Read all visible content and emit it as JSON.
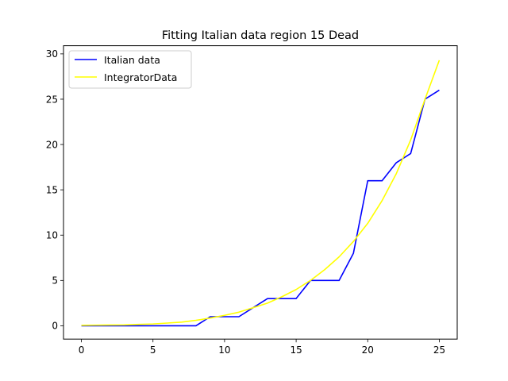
{
  "chart_data": {
    "type": "line",
    "title": "Fitting Italian data region 15 Dead",
    "xlabel": "",
    "ylabel": "",
    "xlim": [
      -1.25,
      26.25
    ],
    "ylim": [
      -1.47,
      30.9
    ],
    "xticks": [
      0,
      5,
      10,
      15,
      20,
      25
    ],
    "yticks": [
      0,
      5,
      10,
      15,
      20,
      25,
      30
    ],
    "grid": false,
    "legend_position": "top-left",
    "x": [
      0,
      1,
      2,
      3,
      4,
      5,
      6,
      7,
      8,
      9,
      10,
      11,
      12,
      13,
      14,
      15,
      16,
      17,
      18,
      19,
      20,
      21,
      22,
      23,
      24,
      25
    ],
    "series": [
      {
        "name": "Italian data",
        "color": "#0000ff",
        "values": [
          0,
          0,
          0,
          0,
          0,
          0,
          0,
          0,
          0,
          1,
          1,
          1,
          2,
          3,
          3,
          3,
          5,
          5,
          5,
          8,
          16,
          16,
          18,
          19,
          25,
          26
        ]
      },
      {
        "name": "IntegratorData",
        "color": "#ffff00",
        "values": [
          0.05,
          0.07,
          0.09,
          0.1,
          0.15,
          0.2,
          0.3,
          0.4,
          0.6,
          0.85,
          1.15,
          1.5,
          2.0,
          2.5,
          3.2,
          4.0,
          5.0,
          6.2,
          7.6,
          9.3,
          11.3,
          13.8,
          16.8,
          20.5,
          25.0,
          29.3
        ]
      }
    ]
  }
}
